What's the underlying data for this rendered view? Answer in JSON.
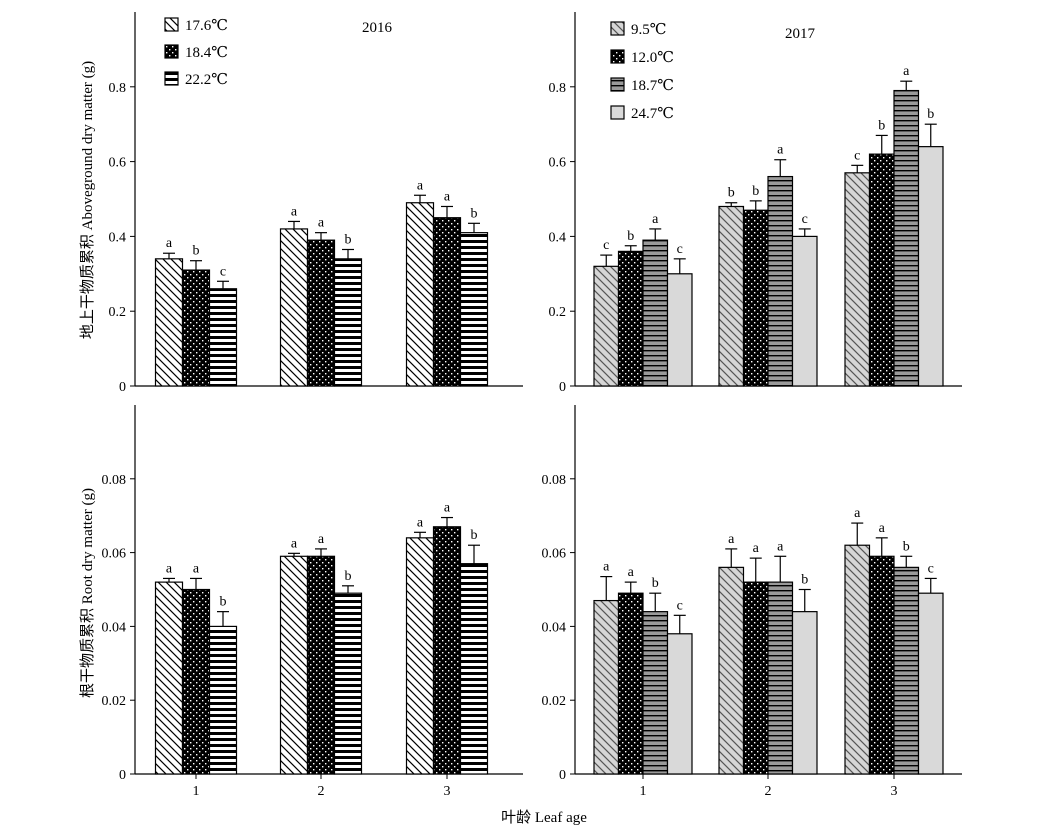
{
  "figure": {
    "ylabel_top": "地上干物质累积 Aboveground dry matter (g)",
    "ylabel_bottom": "根干物质累积 Root dry matter (g)",
    "xlabel": "叶龄 Leaf age"
  },
  "chart_data": [
    {
      "type": "bar",
      "title": "2016",
      "categories": [
        "1",
        "2",
        "3"
      ],
      "ylim": [
        0,
        1.0
      ],
      "yticks": [
        "0",
        "0.2",
        "0.4",
        "0.6",
        "0.8"
      ],
      "legend_position": "top-left",
      "series": [
        {
          "name": "17.6℃",
          "pattern": "diag",
          "values": [
            0.34,
            0.42,
            0.49
          ],
          "errors": [
            0.015,
            0.02,
            0.02
          ],
          "letters": [
            "a",
            "a",
            "a"
          ]
        },
        {
          "name": "18.4℃",
          "pattern": "dots",
          "values": [
            0.31,
            0.39,
            0.45
          ],
          "errors": [
            0.025,
            0.02,
            0.03
          ],
          "letters": [
            "b",
            "a",
            "a"
          ]
        },
        {
          "name": "22.2℃",
          "pattern": "hstripe",
          "values": [
            0.26,
            0.34,
            0.41
          ],
          "errors": [
            0.02,
            0.025,
            0.025
          ],
          "letters": [
            "c",
            "b",
            "b"
          ]
        }
      ]
    },
    {
      "type": "bar",
      "title": "2017",
      "categories": [
        "1",
        "2",
        "3"
      ],
      "ylim": [
        0,
        1.0
      ],
      "yticks": [
        "0",
        "0.2",
        "0.4",
        "0.6",
        "0.8"
      ],
      "legend_position": "top-left",
      "series": [
        {
          "name": "9.5℃",
          "pattern": "diaggray",
          "values": [
            0.32,
            0.48,
            0.57
          ],
          "errors": [
            0.03,
            0.01,
            0.02
          ],
          "letters": [
            "c",
            "b",
            "c"
          ]
        },
        {
          "name": "12.0℃",
          "pattern": "dots",
          "values": [
            0.36,
            0.47,
            0.62
          ],
          "errors": [
            0.015,
            0.025,
            0.05
          ],
          "letters": [
            "b",
            "b",
            "b"
          ]
        },
        {
          "name": "18.7℃",
          "pattern": "graystripe",
          "values": [
            0.39,
            0.56,
            0.79
          ],
          "errors": [
            0.03,
            0.045,
            0.025
          ],
          "letters": [
            "a",
            "a",
            "a"
          ]
        },
        {
          "name": "24.7℃",
          "pattern": "solidgray",
          "values": [
            0.3,
            0.4,
            0.64
          ],
          "errors": [
            0.04,
            0.02,
            0.06
          ],
          "letters": [
            "c",
            "c",
            "b"
          ]
        }
      ]
    },
    {
      "type": "bar",
      "title": "",
      "categories": [
        "1",
        "2",
        "3"
      ],
      "ylim": [
        0,
        0.1
      ],
      "yticks": [
        "0",
        "0.02",
        "0.04",
        "0.06",
        "0.08"
      ],
      "series": [
        {
          "name": "17.6℃",
          "pattern": "diag",
          "values": [
            0.052,
            0.059,
            0.064
          ],
          "errors": [
            0.001,
            0.0008,
            0.0015
          ],
          "letters": [
            "a",
            "a",
            "a"
          ]
        },
        {
          "name": "18.4℃",
          "pattern": "dots",
          "values": [
            0.05,
            0.059,
            0.067
          ],
          "errors": [
            0.003,
            0.002,
            0.0025
          ],
          "letters": [
            "a",
            "a",
            "a"
          ]
        },
        {
          "name": "22.2℃",
          "pattern": "hstripe",
          "values": [
            0.04,
            0.049,
            0.057
          ],
          "errors": [
            0.004,
            0.002,
            0.005
          ],
          "letters": [
            "b",
            "b",
            "b"
          ]
        }
      ]
    },
    {
      "type": "bar",
      "title": "",
      "categories": [
        "1",
        "2",
        "3"
      ],
      "ylim": [
        0,
        0.1
      ],
      "yticks": [
        "0",
        "0.02",
        "0.04",
        "0.06",
        "0.08"
      ],
      "series": [
        {
          "name": "9.5℃",
          "pattern": "diaggray",
          "values": [
            0.047,
            0.056,
            0.062
          ],
          "errors": [
            0.0065,
            0.005,
            0.006
          ],
          "letters": [
            "a",
            "a",
            "a"
          ]
        },
        {
          "name": "12.0℃",
          "pattern": "dots",
          "values": [
            0.049,
            0.052,
            0.059
          ],
          "errors": [
            0.003,
            0.0065,
            0.005
          ],
          "letters": [
            "a",
            "a",
            "a"
          ]
        },
        {
          "name": "18.7℃",
          "pattern": "graystripe",
          "values": [
            0.044,
            0.052,
            0.056
          ],
          "errors": [
            0.005,
            0.007,
            0.003
          ],
          "letters": [
            "b",
            "a",
            "b"
          ]
        },
        {
          "name": "24.7℃",
          "pattern": "solidgray",
          "values": [
            0.038,
            0.044,
            0.049
          ],
          "errors": [
            0.005,
            0.006,
            0.004
          ],
          "letters": [
            "c",
            "b",
            "c"
          ]
        }
      ]
    }
  ]
}
